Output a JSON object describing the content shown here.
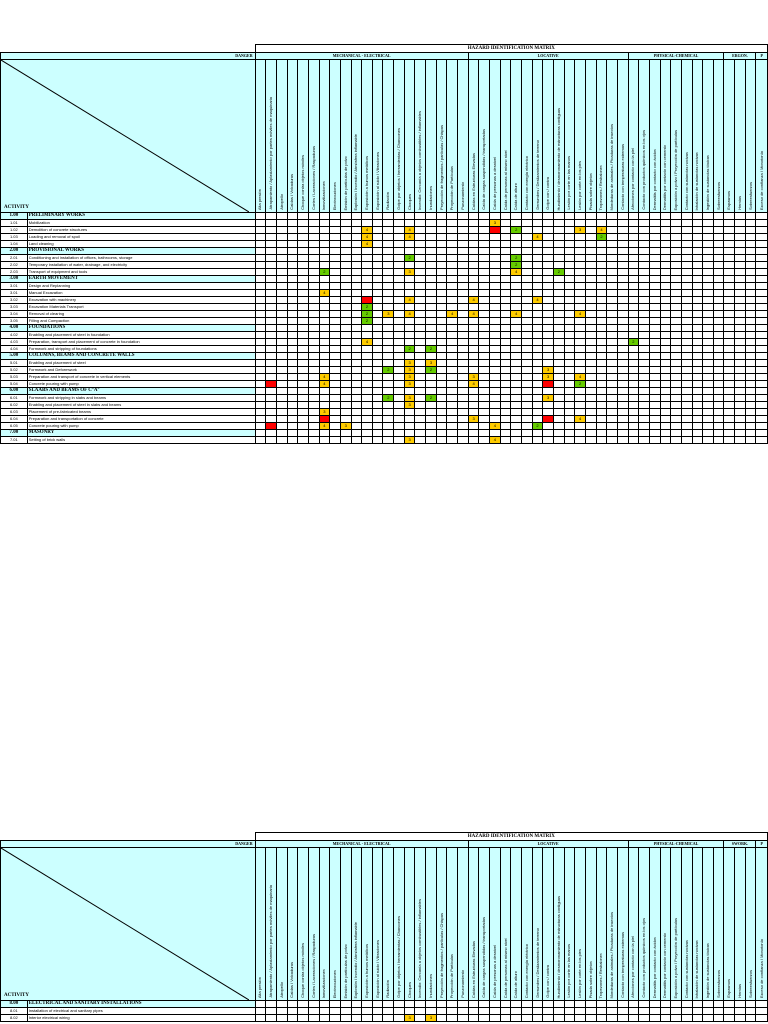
{
  "title": "HAZARD IDENTIFICATION MATRIX",
  "danger_label": "DANGER",
  "activity_label": "ACTIVITY",
  "hazards": [
    "Alta presión",
    "Atrapamiento / Aplastamiento por partes móviles de maquinaria",
    "Atropello",
    "Caídas / Volcaduras",
    "Choque contra objetos móviles",
    "Cortes / Laceraciones / Raspaduras",
    "Inmovilizaciones",
    "Electrocuciones",
    "Emisión de partículas de polvo",
    "Explosión / Incendio / Atmósfera inflamable",
    "Exposición a humos metálicos",
    "Exposición al ruido / Vibraciones",
    "Radiación",
    "Golpe por objetos / herramientas / Chancones",
    "Choques",
    "Incendio: Cercanía a objetos combustibles / inflamables",
    "Inundaciones",
    "Proyección de fragmentos / partículas / Chispas",
    "Proyección de Partículas",
    "Punzonamiento",
    "Caídas en Estructuras Elevadas",
    "Caída de cargas suspendidas / transportadas",
    "Caída de personas a desnivel",
    "Caída de personas al mismo nivel",
    "Caída de altura",
    "Contacto con energía eléctrica",
    "Derrumbes / Deslizamientos de terreno",
    "Golpe con / contra",
    "Hundimiento / desmoronamiento de estructuras contiguas",
    "Lesión por corte en las manos",
    "Lesión por corte en los pies",
    "Pisada sobre objetos",
    "Tropezones / Resbalones",
    "Mordeduras de animales / Picaduras de insectos",
    "Contacto con temperaturas extremas",
    "Afecciones por contacto con la piel",
    "Contacto con productos químicos en los ojos",
    "Dermatitis por contacto con ácidos",
    "Dermatitis por contacto con cemento",
    "Exposición a polvo / Proyección de partículas",
    "Contacto con sustancias nocivas",
    "Inhalación de sustancias nocivas",
    "Ingestión de sustancias tóxicas",
    "Sobreesfuerzos",
    "Espasmos",
    "Hernias",
    "Sobreesfuerzos",
    "Exceso de confianza / Monotonía"
  ],
  "sheet1": {
    "groups": [
      "MECHANICAL - ELECTRICAL",
      "LOCATIVE",
      "PHYSICAL-CHEMICAL",
      "ERGON.",
      "P"
    ],
    "rows": [
      {
        "code": "1.00",
        "activity": "PRELIMINARY WORKS",
        "sec": true,
        "cells": ""
      },
      {
        "code": "1.01",
        "activity": "Mobilization",
        "cells": "......................3.........."
      },
      {
        "code": "1.02",
        "activity": "Demolition of concrete structures",
        "cells": "..........4...4.......R.g.....3.4......"
      },
      {
        "code": "1.03",
        "activity": "Loading and removal of spoil",
        "cells": "..........4...4...........4.....g"
      },
      {
        "code": "1.04",
        "activity": "Land cleaning",
        "cells": "..........4"
      },
      {
        "code": "2.00",
        "activity": "PROVISIONAL WORKS",
        "sec": true,
        "cells": ""
      },
      {
        "code": "2.01",
        "activity": "Conditioning and installation of offices, bathrooms, storage",
        "cells": "..............g.........g"
      },
      {
        "code": "2.02",
        "activity": "Temporary installation of water, drainage, and electricity",
        "cells": "........................g"
      },
      {
        "code": "2.03",
        "activity": "Transport of equipment and tools",
        "cells": "......g.......3.........4...g"
      },
      {
        "code": "3.00",
        "activity": "EARTH MOVEMENT",
        "sec": true,
        "cells": ""
      },
      {
        "code": "3.01",
        "activity": "Design and Replanning",
        "cells": ""
      },
      {
        "code": "3.01",
        "activity": "Manual Excavation",
        "cells": "......4"
      },
      {
        "code": "3.02",
        "activity": "Excavation with machinery",
        "cells": "..........R...4.....4.....4"
      },
      {
        "code": "3.03",
        "activity": "Excavation Materials Transport",
        "cells": "..........g"
      },
      {
        "code": "3.04",
        "activity": "Removal of clearing",
        "cells": "..........g.3.4...4.4...4.....4"
      },
      {
        "code": "3.05",
        "activity": "Filling and Compaction",
        "cells": "..........g"
      },
      {
        "code": "4.00",
        "activity": "FOUNDATIONS",
        "sec": true,
        "cells": ""
      },
      {
        "code": "4.02",
        "activity": "Enabling and placement of steel in foundation",
        "cells": ""
      },
      {
        "code": "4.03",
        "activity": "Preparation, transport and placement of concrete in foundation",
        "cells": "..........4........................g"
      },
      {
        "code": "4.04",
        "activity": "Formwork and stripping of foundations",
        "cells": "..............g.g"
      },
      {
        "code": "5.00",
        "activity": "COLUMNS, BEAMS AND CONCRETE WALLS",
        "sec": true,
        "cells": ""
      },
      {
        "code": "5.01",
        "activity": "Enabling and placement of steel",
        "cells": "..............3.3"
      },
      {
        "code": "5.02",
        "activity": "Formwork and Deformwork",
        "cells": "............g.3.g..........3"
      },
      {
        "code": "5.03",
        "activity": "Preparation and transport of concrete in vertical elements",
        "cells": "......4.......3.....3......3..4"
      },
      {
        "code": "5.04",
        "activity": "Concrete pouring with pump",
        "cells": ".R....4.......3.....4......R..g"
      },
      {
        "code": "6.00",
        "activity": "SLAABS AND BEAMS OF C°A°",
        "sec": true,
        "cells": ""
      },
      {
        "code": "6.01",
        "activity": "Formwork and stripping in slabs and beams",
        "cells": "............g.3.g..........3"
      },
      {
        "code": "6.02",
        "activity": "Enabling and placement of steel in slabs and beams",
        "cells": "..............3"
      },
      {
        "code": "6.03",
        "activity": "Placement of pre-fabricated beams",
        "cells": "......3"
      },
      {
        "code": "6.04",
        "activity": "Preparation and transportation of concrete",
        "cells": "......R.............3......R..4"
      },
      {
        "code": "6.05",
        "activity": "Concrete pouring with pump",
        "cells": ".R....4.3.............4...g"
      },
      {
        "code": "7.00",
        "activity": "MASONRY",
        "sec": true,
        "cells": ""
      },
      {
        "code": "7.01",
        "activity": "Setting of brick walls",
        "cells": "..............3.......4"
      }
    ]
  },
  "sheet2": {
    "groups": [
      "MECHANICAL - ELECTRICAL",
      "LOCATIVE",
      "PHYSICAL-CHEMICAL",
      "SWORK.",
      "P"
    ],
    "rows": [
      {
        "code": "8.00",
        "activity": "ELECTRICAL AND SANITARY INSTALLATIONS",
        "sec": true,
        "cells": ""
      },
      {
        "code": "8.01",
        "activity": "Installation of electrical and sanitary pipes",
        "cells": ""
      },
      {
        "code": "8.02",
        "activity": "Interior electrical wiring",
        "cells": "..............3.3"
      }
    ]
  }
}
